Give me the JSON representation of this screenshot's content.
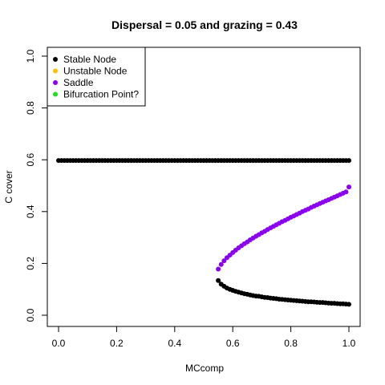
{
  "chart_data": {
    "type": "scatter",
    "title": "Dispersal =  0.05 and grazing = 0.43",
    "xlabel": "MCcomp",
    "ylabel": "C cover",
    "xlim": [
      0,
      1
    ],
    "ylim": [
      0,
      1
    ],
    "xticks": [
      "0.0",
      "0.2",
      "0.4",
      "0.6",
      "0.8",
      "1.0"
    ],
    "yticks": [
      "0.0",
      "0.2",
      "0.4",
      "0.6",
      "0.8",
      "1.0"
    ],
    "grid": false,
    "legend_position": "top-left",
    "legend": [
      {
        "label": "Stable Node",
        "color": "#000000"
      },
      {
        "label": "Unstable Node",
        "color": "#FFC000"
      },
      {
        "label": "Saddle",
        "color": "#8B00F0"
      },
      {
        "label": "Bifurcation Point?",
        "color": "#22DD22"
      }
    ],
    "series": [
      {
        "name": "Stable Node",
        "color": "#000000",
        "points": [
          [
            0.0,
            0.597
          ],
          [
            0.01,
            0.597
          ],
          [
            0.02,
            0.597
          ],
          [
            0.03,
            0.597
          ],
          [
            0.04,
            0.597
          ],
          [
            0.05,
            0.597
          ],
          [
            0.06,
            0.597
          ],
          [
            0.07,
            0.597
          ],
          [
            0.08,
            0.597
          ],
          [
            0.09,
            0.597
          ],
          [
            0.1,
            0.597
          ],
          [
            0.11,
            0.597
          ],
          [
            0.12,
            0.597
          ],
          [
            0.13,
            0.597
          ],
          [
            0.14,
            0.597
          ],
          [
            0.15,
            0.597
          ],
          [
            0.16,
            0.597
          ],
          [
            0.17,
            0.597
          ],
          [
            0.18,
            0.597
          ],
          [
            0.19,
            0.597
          ],
          [
            0.2,
            0.597
          ],
          [
            0.21,
            0.597
          ],
          [
            0.22,
            0.597
          ],
          [
            0.23,
            0.597
          ],
          [
            0.24,
            0.597
          ],
          [
            0.25,
            0.597
          ],
          [
            0.26,
            0.597
          ],
          [
            0.27,
            0.597
          ],
          [
            0.28,
            0.597
          ],
          [
            0.29,
            0.597
          ],
          [
            0.3,
            0.597
          ],
          [
            0.31,
            0.597
          ],
          [
            0.32,
            0.597
          ],
          [
            0.33,
            0.597
          ],
          [
            0.34,
            0.597
          ],
          [
            0.35,
            0.597
          ],
          [
            0.36,
            0.597
          ],
          [
            0.37,
            0.597
          ],
          [
            0.38,
            0.597
          ],
          [
            0.39,
            0.597
          ],
          [
            0.4,
            0.597
          ],
          [
            0.41,
            0.597
          ],
          [
            0.42,
            0.597
          ],
          [
            0.43,
            0.597
          ],
          [
            0.44,
            0.597
          ],
          [
            0.45,
            0.597
          ],
          [
            0.46,
            0.597
          ],
          [
            0.47,
            0.597
          ],
          [
            0.48,
            0.597
          ],
          [
            0.49,
            0.597
          ],
          [
            0.5,
            0.597
          ],
          [
            0.51,
            0.597
          ],
          [
            0.52,
            0.597
          ],
          [
            0.53,
            0.597
          ],
          [
            0.54,
            0.597
          ],
          [
            0.55,
            0.597
          ],
          [
            0.56,
            0.597
          ],
          [
            0.57,
            0.597
          ],
          [
            0.58,
            0.597
          ],
          [
            0.59,
            0.597
          ],
          [
            0.6,
            0.597
          ],
          [
            0.61,
            0.597
          ],
          [
            0.62,
            0.597
          ],
          [
            0.63,
            0.597
          ],
          [
            0.64,
            0.597
          ],
          [
            0.65,
            0.597
          ],
          [
            0.66,
            0.597
          ],
          [
            0.67,
            0.597
          ],
          [
            0.68,
            0.597
          ],
          [
            0.69,
            0.597
          ],
          [
            0.7,
            0.597
          ],
          [
            0.71,
            0.597
          ],
          [
            0.72,
            0.597
          ],
          [
            0.73,
            0.597
          ],
          [
            0.74,
            0.597
          ],
          [
            0.75,
            0.597
          ],
          [
            0.76,
            0.597
          ],
          [
            0.77,
            0.597
          ],
          [
            0.78,
            0.597
          ],
          [
            0.79,
            0.597
          ],
          [
            0.8,
            0.597
          ],
          [
            0.81,
            0.597
          ],
          [
            0.82,
            0.597
          ],
          [
            0.83,
            0.597
          ],
          [
            0.84,
            0.597
          ],
          [
            0.85,
            0.597
          ],
          [
            0.86,
            0.597
          ],
          [
            0.87,
            0.597
          ],
          [
            0.88,
            0.597
          ],
          [
            0.89,
            0.597
          ],
          [
            0.9,
            0.597
          ],
          [
            0.91,
            0.597
          ],
          [
            0.92,
            0.597
          ],
          [
            0.93,
            0.597
          ],
          [
            0.94,
            0.597
          ],
          [
            0.95,
            0.597
          ],
          [
            0.96,
            0.597
          ],
          [
            0.97,
            0.597
          ],
          [
            0.98,
            0.597
          ],
          [
            0.99,
            0.597
          ],
          [
            1.0,
            0.597
          ],
          [
            0.55,
            0.134
          ],
          [
            0.56,
            0.12
          ],
          [
            0.57,
            0.112
          ],
          [
            0.58,
            0.105
          ],
          [
            0.59,
            0.1
          ],
          [
            0.6,
            0.096
          ],
          [
            0.61,
            0.092
          ],
          [
            0.62,
            0.089
          ],
          [
            0.63,
            0.086
          ],
          [
            0.64,
            0.083
          ],
          [
            0.65,
            0.081
          ],
          [
            0.66,
            0.078
          ],
          [
            0.67,
            0.076
          ],
          [
            0.68,
            0.074
          ],
          [
            0.69,
            0.073
          ],
          [
            0.7,
            0.071
          ],
          [
            0.71,
            0.069
          ],
          [
            0.72,
            0.068
          ],
          [
            0.73,
            0.066
          ],
          [
            0.74,
            0.065
          ],
          [
            0.75,
            0.064
          ],
          [
            0.76,
            0.062
          ],
          [
            0.77,
            0.061
          ],
          [
            0.78,
            0.06
          ],
          [
            0.79,
            0.059
          ],
          [
            0.8,
            0.058
          ],
          [
            0.81,
            0.057
          ],
          [
            0.82,
            0.056
          ],
          [
            0.83,
            0.055
          ],
          [
            0.84,
            0.054
          ],
          [
            0.85,
            0.053
          ],
          [
            0.86,
            0.052
          ],
          [
            0.87,
            0.052
          ],
          [
            0.88,
            0.051
          ],
          [
            0.89,
            0.05
          ],
          [
            0.9,
            0.049
          ],
          [
            0.91,
            0.049
          ],
          [
            0.92,
            0.048
          ],
          [
            0.93,
            0.047
          ],
          [
            0.94,
            0.046
          ],
          [
            0.95,
            0.046
          ],
          [
            0.96,
            0.045
          ],
          [
            0.97,
            0.044
          ],
          [
            0.98,
            0.044
          ],
          [
            0.99,
            0.043
          ],
          [
            1.0,
            0.042
          ]
        ]
      },
      {
        "name": "Saddle",
        "color": "#8B00F0",
        "points": [
          [
            0.55,
            0.178
          ],
          [
            0.56,
            0.196
          ],
          [
            0.57,
            0.21
          ],
          [
            0.58,
            0.222
          ],
          [
            0.59,
            0.232
          ],
          [
            0.6,
            0.242
          ],
          [
            0.61,
            0.251
          ],
          [
            0.62,
            0.26
          ],
          [
            0.63,
            0.268
          ],
          [
            0.64,
            0.276
          ],
          [
            0.65,
            0.283
          ],
          [
            0.66,
            0.291
          ],
          [
            0.67,
            0.298
          ],
          [
            0.68,
            0.305
          ],
          [
            0.69,
            0.311
          ],
          [
            0.7,
            0.318
          ],
          [
            0.71,
            0.324
          ],
          [
            0.72,
            0.331
          ],
          [
            0.73,
            0.337
          ],
          [
            0.74,
            0.343
          ],
          [
            0.75,
            0.349
          ],
          [
            0.76,
            0.355
          ],
          [
            0.77,
            0.361
          ],
          [
            0.78,
            0.366
          ],
          [
            0.79,
            0.372
          ],
          [
            0.8,
            0.378
          ],
          [
            0.81,
            0.383
          ],
          [
            0.82,
            0.389
          ],
          [
            0.83,
            0.394
          ],
          [
            0.84,
            0.4
          ],
          [
            0.85,
            0.405
          ],
          [
            0.86,
            0.41
          ],
          [
            0.87,
            0.416
          ],
          [
            0.88,
            0.421
          ],
          [
            0.89,
            0.426
          ],
          [
            0.9,
            0.431
          ],
          [
            0.91,
            0.436
          ],
          [
            0.92,
            0.441
          ],
          [
            0.93,
            0.446
          ],
          [
            0.94,
            0.451
          ],
          [
            0.95,
            0.456
          ],
          [
            0.96,
            0.461
          ],
          [
            0.97,
            0.466
          ],
          [
            0.98,
            0.471
          ],
          [
            0.99,
            0.476
          ],
          [
            1.0,
            0.495
          ]
        ]
      }
    ]
  }
}
